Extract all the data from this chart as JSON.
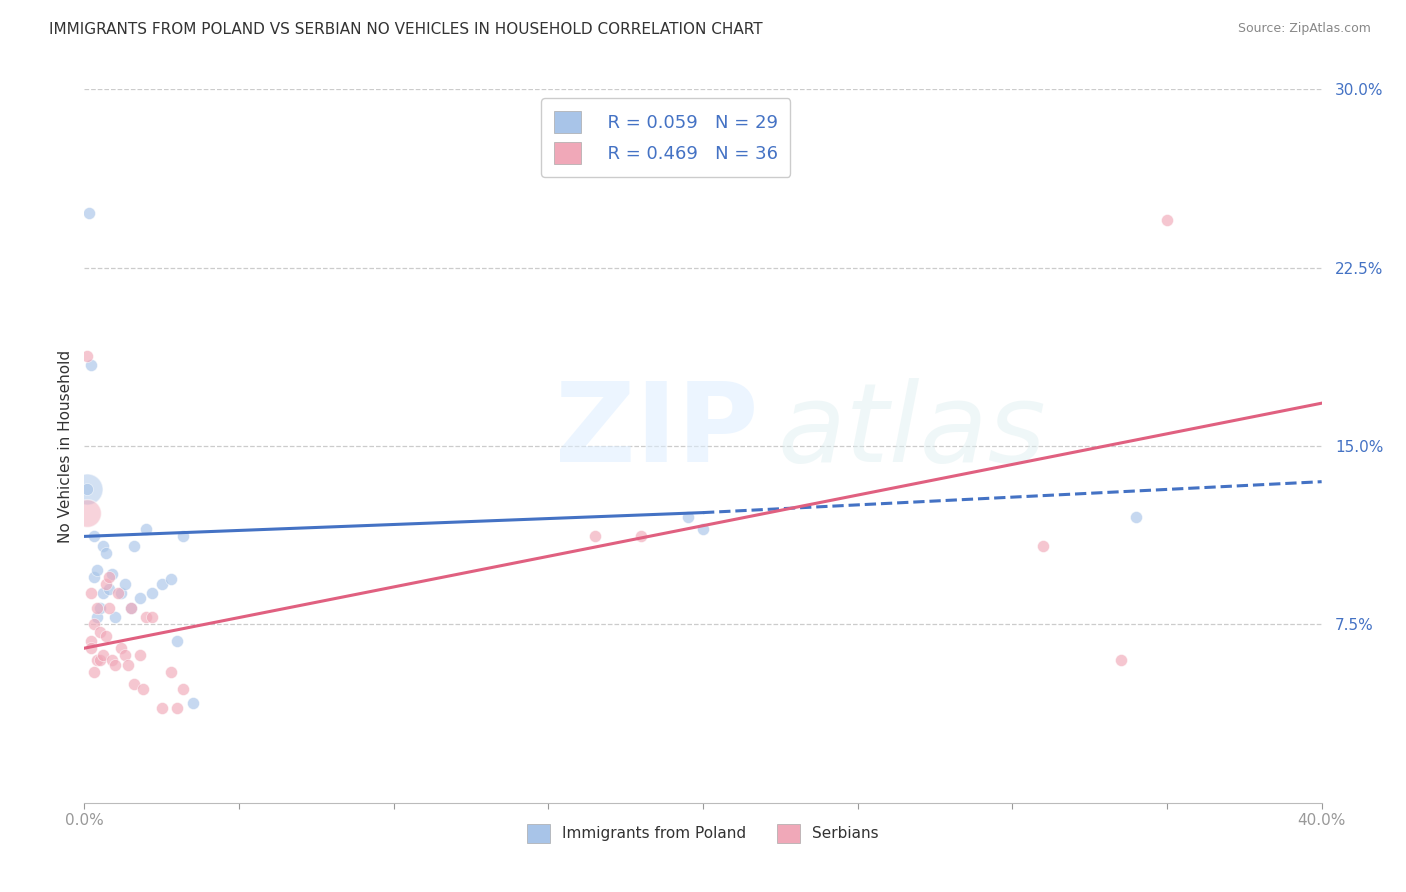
{
  "title": "IMMIGRANTS FROM POLAND VS SERBIAN NO VEHICLES IN HOUSEHOLD CORRELATION CHART",
  "source": "Source: ZipAtlas.com",
  "ylabel": "No Vehicles in Household",
  "y_ticks_right": [
    "7.5%",
    "15.0%",
    "22.5%",
    "30.0%"
  ],
  "legend_label1": "Immigrants from Poland",
  "legend_label2": "Serbians",
  "r1": 0.059,
  "n1": 29,
  "r2": 0.469,
  "n2": 36,
  "color_blue": "#a8c4e8",
  "color_pink": "#f0a8b8",
  "line_color_blue": "#4472c4",
  "line_color_pink": "#e06080",
  "xlim": [
    0.0,
    0.4
  ],
  "ylim": [
    0.0,
    0.3
  ],
  "poland_x": [
    0.0008,
    0.0015,
    0.002,
    0.003,
    0.003,
    0.004,
    0.004,
    0.005,
    0.006,
    0.006,
    0.007,
    0.008,
    0.009,
    0.01,
    0.012,
    0.013,
    0.015,
    0.016,
    0.018,
    0.02,
    0.022,
    0.025,
    0.028,
    0.03,
    0.032,
    0.035,
    0.2,
    0.195,
    0.34
  ],
  "poland_y": [
    0.132,
    0.248,
    0.184,
    0.095,
    0.112,
    0.098,
    0.078,
    0.082,
    0.088,
    0.108,
    0.105,
    0.09,
    0.096,
    0.078,
    0.088,
    0.092,
    0.082,
    0.108,
    0.086,
    0.115,
    0.088,
    0.092,
    0.094,
    0.068,
    0.112,
    0.042,
    0.115,
    0.12,
    0.12
  ],
  "poland_sizes": [
    80,
    80,
    80,
    80,
    80,
    80,
    80,
    80,
    80,
    80,
    80,
    80,
    80,
    80,
    80,
    80,
    80,
    80,
    80,
    80,
    80,
    80,
    80,
    80,
    80,
    80,
    80,
    80,
    80
  ],
  "serbian_x": [
    0.001,
    0.002,
    0.002,
    0.003,
    0.003,
    0.004,
    0.004,
    0.005,
    0.005,
    0.006,
    0.007,
    0.007,
    0.008,
    0.008,
    0.009,
    0.01,
    0.011,
    0.012,
    0.013,
    0.014,
    0.015,
    0.016,
    0.018,
    0.019,
    0.02,
    0.022,
    0.025,
    0.028,
    0.03,
    0.032,
    0.165,
    0.18,
    0.31,
    0.335,
    0.35,
    0.002
  ],
  "serbian_y": [
    0.188,
    0.088,
    0.068,
    0.075,
    0.055,
    0.082,
    0.06,
    0.06,
    0.072,
    0.062,
    0.07,
    0.092,
    0.095,
    0.082,
    0.06,
    0.058,
    0.088,
    0.065,
    0.062,
    0.058,
    0.082,
    0.05,
    0.062,
    0.048,
    0.078,
    0.078,
    0.04,
    0.055,
    0.04,
    0.048,
    0.112,
    0.112,
    0.108,
    0.06,
    0.245,
    0.065
  ],
  "serbian_sizes": [
    80,
    80,
    80,
    80,
    80,
    80,
    80,
    80,
    80,
    80,
    80,
    80,
    80,
    80,
    80,
    80,
    80,
    80,
    80,
    80,
    80,
    80,
    80,
    80,
    80,
    80,
    80,
    80,
    80,
    80,
    80,
    80,
    80,
    80,
    80,
    80
  ]
}
